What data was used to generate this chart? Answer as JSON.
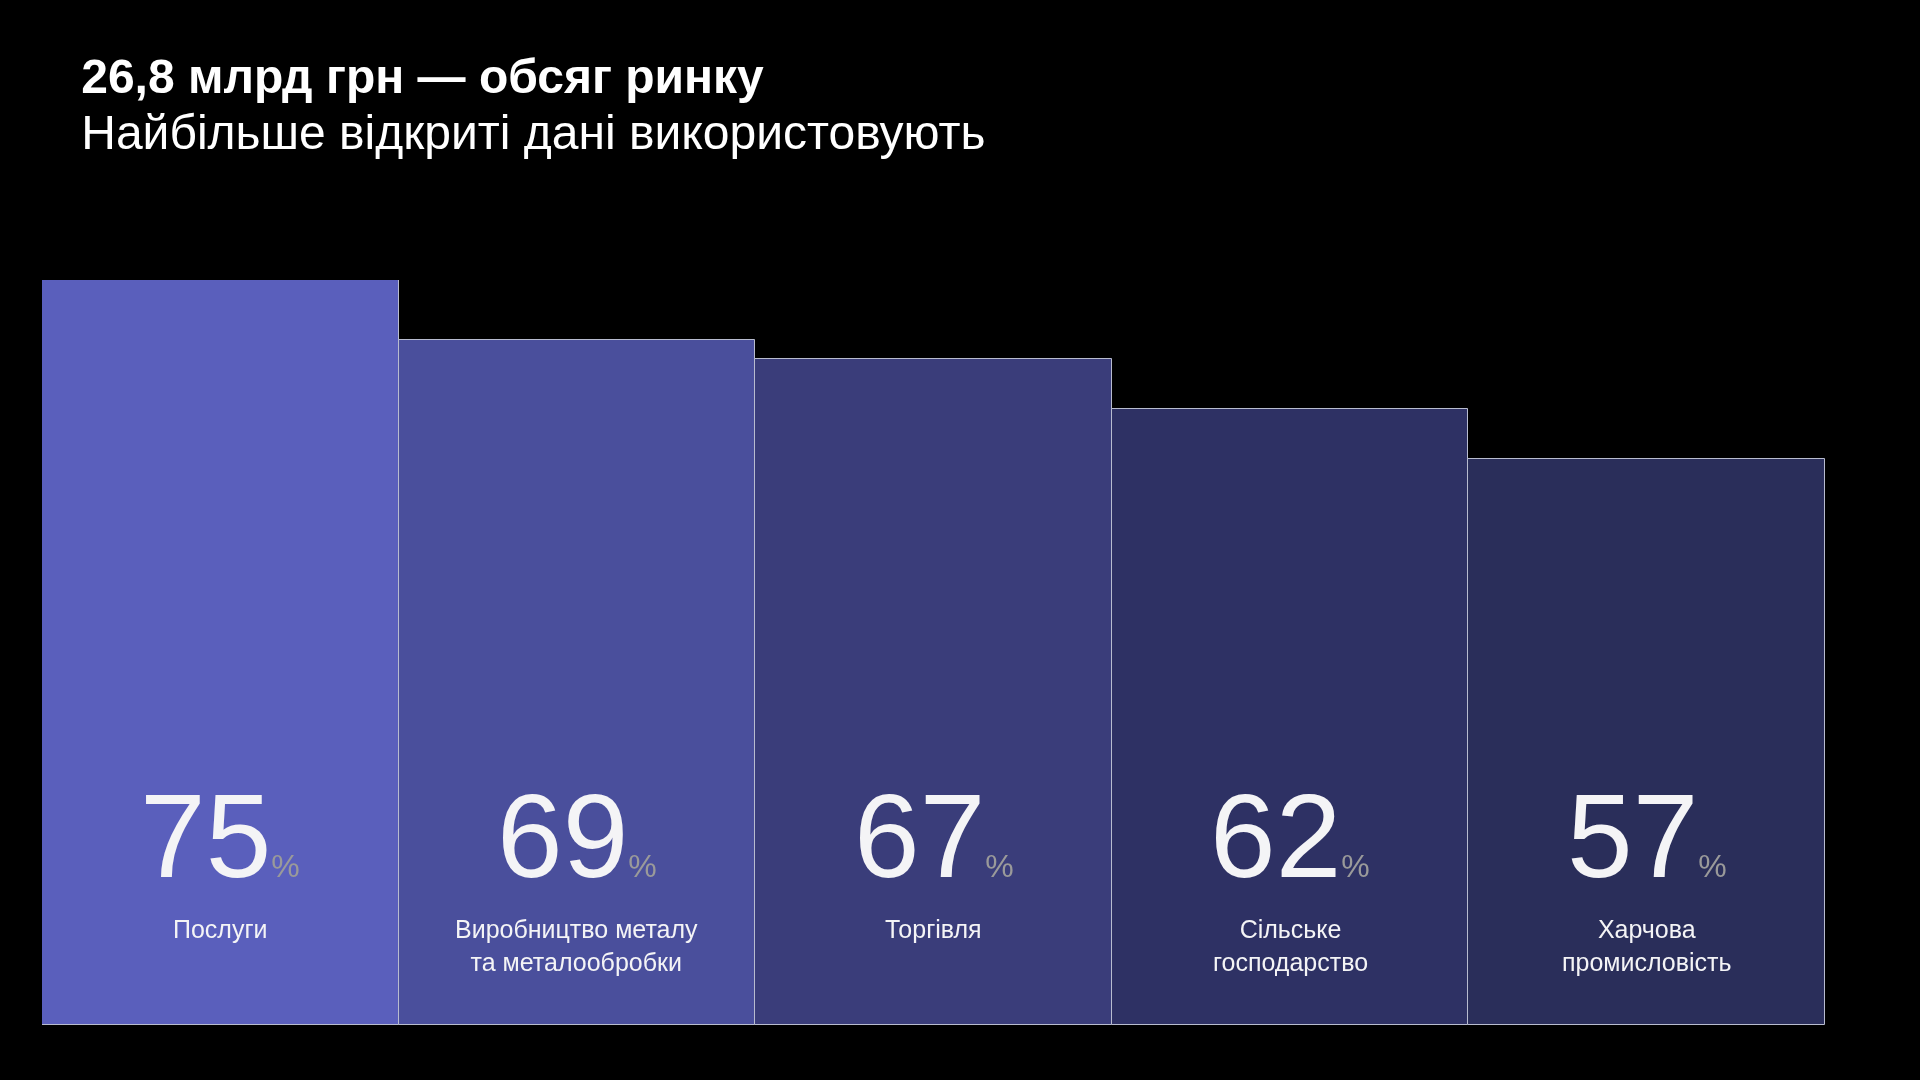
{
  "chart_data": {
    "type": "bar",
    "title": "26,8 млрд грн — обсяг ринку",
    "subtitle": "Найбільше відкриті дані використовують",
    "categories": [
      "Послуги",
      "Виробництво металу та металообробки",
      "Торгівля",
      "Сільське господарство",
      "Харчова промисловість"
    ],
    "values": [
      75,
      69,
      67,
      62,
      57
    ],
    "value_labels": [
      "75%",
      "69%",
      "67%",
      "62%",
      "57%"
    ],
    "colors": [
      "#5a5fbc",
      "#4a4f9c",
      "#3a3d7a",
      "#2e3164",
      "#2a2e5a"
    ],
    "tick_labels": "x"
  }
}
